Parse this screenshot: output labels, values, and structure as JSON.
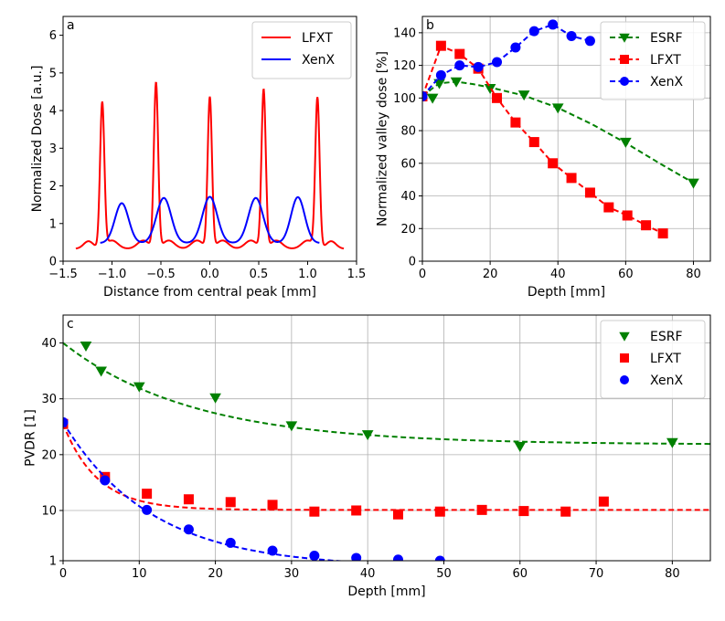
{
  "chart_data": [
    {
      "id": "a",
      "type": "line",
      "panel_letter": "a",
      "xlabel": "Distance from central peak [mm]",
      "ylabel": "Normalized Dose [a.u.]",
      "xlim": [
        -1.5,
        1.5
      ],
      "ylim": [
        0,
        6.5
      ],
      "xticks": [
        -1.5,
        -1.0,
        -0.5,
        0.0,
        0.5,
        1.0,
        1.5
      ],
      "xtick_labels": [
        "−1.5",
        "−1.0",
        "−0.5",
        "0.0",
        "0.5",
        "1.0",
        "1.5"
      ],
      "yticks": [
        0,
        1,
        2,
        3,
        4,
        5,
        6
      ],
      "ytick_labels": [
        "0",
        "1",
        "2",
        "3",
        "4",
        "5",
        "6"
      ],
      "grid": false,
      "legend": "top-right",
      "series": [
        {
          "name": "LFXT",
          "color": "#ff0000",
          "width": 2.0,
          "generator": {
            "kind": "peaks",
            "x_range": [
              -1.37,
              1.37
            ],
            "base": 0.33,
            "shoulders": [
              [
                -1.24,
                0.2,
                0.05
              ],
              [
                -1.0,
                0.22,
                0.06
              ],
              [
                -0.68,
                0.22,
                0.06
              ],
              [
                -0.42,
                0.22,
                0.06
              ],
              [
                -0.13,
                0.22,
                0.06
              ],
              [
                0.13,
                0.22,
                0.06
              ],
              [
                0.42,
                0.22,
                0.06
              ],
              [
                0.68,
                0.22,
                0.06
              ],
              [
                1.0,
                0.22,
                0.06
              ],
              [
                1.24,
                0.2,
                0.05
              ]
            ],
            "peaks": [
              [
                -1.1,
                3.85,
                0.022
              ],
              [
                -0.55,
                4.38,
                0.022
              ],
              [
                0.0,
                4.0,
                0.022
              ],
              [
                0.55,
                4.2,
                0.022
              ],
              [
                1.1,
                3.97,
                0.022
              ]
            ]
          }
        },
        {
          "name": "XenX",
          "color": "#0000ff",
          "width": 2.0,
          "generator": {
            "kind": "peaks",
            "x_range": [
              -1.12,
              1.12
            ],
            "base": 0.48,
            "shoulders": [],
            "peaks": [
              [
                -0.9,
                1.06,
                0.07
              ],
              [
                -0.47,
                1.2,
                0.075
              ],
              [
                0.0,
                1.23,
                0.075
              ],
              [
                0.47,
                1.2,
                0.075
              ],
              [
                0.9,
                1.22,
                0.07
              ]
            ]
          }
        }
      ]
    },
    {
      "id": "b",
      "type": "line",
      "panel_letter": "b",
      "xlabel": "Depth [mm]",
      "ylabel": "Normalized valley dose [%]",
      "xlim": [
        0,
        85
      ],
      "ylim": [
        0,
        150
      ],
      "xticks": [
        0,
        20,
        40,
        60,
        80
      ],
      "xtick_labels": [
        "0",
        "20",
        "40",
        "60",
        "80"
      ],
      "yticks": [
        0,
        20,
        40,
        60,
        80,
        100,
        120,
        140
      ],
      "ytick_labels": [
        "0",
        "20",
        "40",
        "60",
        "80",
        "100",
        "120",
        "140"
      ],
      "grid": true,
      "legend": "top-right",
      "series": [
        {
          "name": "ESRF",
          "color": "#008000",
          "marker": "triangle-down",
          "x": [
            0,
            3,
            5,
            10,
            20,
            30,
            40,
            60,
            80
          ],
          "y": [
            101,
            100,
            109,
            110,
            106,
            102,
            94,
            73,
            48
          ],
          "fit": {
            "x": [
              0,
              3,
              5,
              10,
              15,
              20,
              30,
              40,
              50,
              60,
              70,
              80
            ],
            "y": [
              101,
              106,
              109,
              110,
              108.5,
              106.5,
              101.5,
              94,
              84,
              72.5,
              60,
              48
            ]
          }
        },
        {
          "name": "LFXT",
          "color": "#ff0000",
          "marker": "square",
          "x": [
            0,
            5.5,
            11,
            16.5,
            22,
            27.5,
            33,
            38.5,
            44,
            49.5,
            55,
            60.5,
            66,
            71
          ],
          "y": [
            101,
            132,
            127,
            118,
            100,
            85,
            73,
            60,
            51,
            42,
            33,
            28,
            22,
            17
          ],
          "fit": {
            "x": [
              0,
              5.5,
              11,
              16.5,
              22,
              27.5,
              33,
              38.5,
              44,
              49.5,
              55,
              60.5,
              66,
              71
            ],
            "y": [
              101,
              132,
              127,
              118,
              100,
              85,
              73,
              60,
              51,
              42,
              33,
              28,
              22,
              17
            ]
          }
        },
        {
          "name": "XenX",
          "color": "#0000ff",
          "marker": "circle",
          "x": [
            0,
            5.5,
            11,
            16.5,
            22,
            27.5,
            33,
            38.5,
            44,
            49.5
          ],
          "y": [
            101,
            114,
            120,
            119,
            122,
            131,
            141,
            145,
            138,
            135
          ],
          "fit": {
            "x": [
              0,
              5.5,
              11,
              16.5,
              22,
              27.5,
              33,
              38.5,
              44,
              49.5
            ],
            "y": [
              101,
              114,
              120,
              119,
              122,
              131,
              141,
              145,
              138,
              135
            ]
          }
        }
      ]
    },
    {
      "id": "c",
      "type": "scatter",
      "panel_letter": "c",
      "xlabel": "Depth [mm]",
      "ylabel": "PVDR [1]",
      "xlim": [
        0,
        85
      ],
      "ylim": [
        1,
        45
      ],
      "xticks": [
        0,
        10,
        20,
        30,
        40,
        50,
        60,
        70,
        80
      ],
      "xtick_labels": [
        "0",
        "10",
        "20",
        "30",
        "40",
        "50",
        "60",
        "70",
        "80"
      ],
      "yticks": [
        1,
        10,
        20,
        30,
        40
      ],
      "ytick_labels": [
        "1",
        "10",
        "20",
        "30",
        "40"
      ],
      "grid": true,
      "legend": "top-right",
      "series": [
        {
          "name": "ESRF",
          "color": "#008000",
          "marker": "triangle-down",
          "x": [
            3,
            5,
            10,
            20,
            30,
            40,
            60,
            80
          ],
          "y": [
            39.5,
            35,
            32.2,
            30.2,
            25.2,
            23.6,
            21.5,
            22.2
          ],
          "fit": {
            "a": 21.8,
            "b": 18.2,
            "tau": 17,
            "x_range": [
              0,
              85
            ]
          }
        },
        {
          "name": "LFXT",
          "color": "#ff0000",
          "marker": "square",
          "x": [
            0,
            5.5,
            11,
            16.5,
            22,
            27.5,
            33,
            38.5,
            44,
            49.5,
            55,
            60.5,
            66,
            71
          ],
          "y": [
            25.5,
            16,
            13,
            12,
            11.5,
            11,
            9.8,
            10,
            9.3,
            9.8,
            10.1,
            9.9,
            9.8,
            11.6
          ],
          "fit": {
            "a": 10.1,
            "b": 15.4,
            "tau": 4.5,
            "x_range": [
              0,
              85
            ]
          }
        },
        {
          "name": "XenX",
          "color": "#0000ff",
          "marker": "circle",
          "x": [
            0,
            5.5,
            11,
            16.5,
            22,
            27.5,
            33,
            38.5,
            44,
            49.5
          ],
          "y": [
            25.8,
            15.4,
            10.1,
            6.6,
            4.2,
            2.8,
            1.9,
            1.5,
            1.2,
            1.0
          ],
          "fit": {
            "a": -0.2,
            "b": 26,
            "tau": 11.6,
            "x_range": [
              0,
              66
            ]
          }
        }
      ]
    }
  ]
}
